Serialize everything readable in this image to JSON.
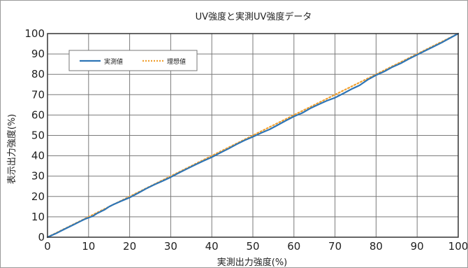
{
  "chart_data": {
    "type": "line",
    "title": "UV強度と実測UV強度データ",
    "xlabel": "実測出力強度(%)",
    "ylabel": "表示出力強度(%)",
    "xlim": [
      0,
      100
    ],
    "ylim": [
      0,
      100
    ],
    "x_ticks": [
      "0",
      "10",
      "20",
      "30",
      "40",
      "50",
      "60",
      "70",
      "80",
      "90",
      "100"
    ],
    "y_ticks": [
      "0",
      "10",
      "20",
      "30",
      "40",
      "50",
      "60",
      "70",
      "80",
      "90",
      "100"
    ],
    "grid": true,
    "legend_position": "top-left",
    "series": [
      {
        "name": "実測値",
        "color": "#2e75b6",
        "style": "solid",
        "x": [
          0,
          2,
          4,
          6,
          8,
          9,
          10,
          11,
          12,
          14,
          15,
          16,
          18,
          20,
          22,
          24,
          26,
          28,
          30,
          32,
          34,
          36,
          38,
          40,
          42,
          44,
          46,
          48,
          50,
          52,
          54,
          56,
          58,
          60,
          62,
          64,
          66,
          68,
          70,
          72,
          74,
          76,
          78,
          80,
          82,
          84,
          86,
          88,
          90,
          92,
          94,
          96,
          98,
          100
        ],
        "y": [
          0,
          1.8,
          3.8,
          5.8,
          7.8,
          8.8,
          9.6,
          10.3,
          11.6,
          13.6,
          15.0,
          16.0,
          17.8,
          19.5,
          21.6,
          23.8,
          25.8,
          27.6,
          29.5,
          31.6,
          33.6,
          35.6,
          37.5,
          39.3,
          41.4,
          43.4,
          45.6,
          47.6,
          49.3,
          51.2,
          52.9,
          55.0,
          57.2,
          59.3,
          61.0,
          63.3,
          65.2,
          67.0,
          68.5,
          70.6,
          72.7,
          74.6,
          77.4,
          79.6,
          81.4,
          83.6,
          85.4,
          87.6,
          89.6,
          91.6,
          93.6,
          95.6,
          97.8,
          100
        ]
      },
      {
        "name": "理想値",
        "color": "#f0a030",
        "style": "dotted",
        "x": [
          0,
          100
        ],
        "y": [
          0,
          100
        ]
      }
    ]
  }
}
